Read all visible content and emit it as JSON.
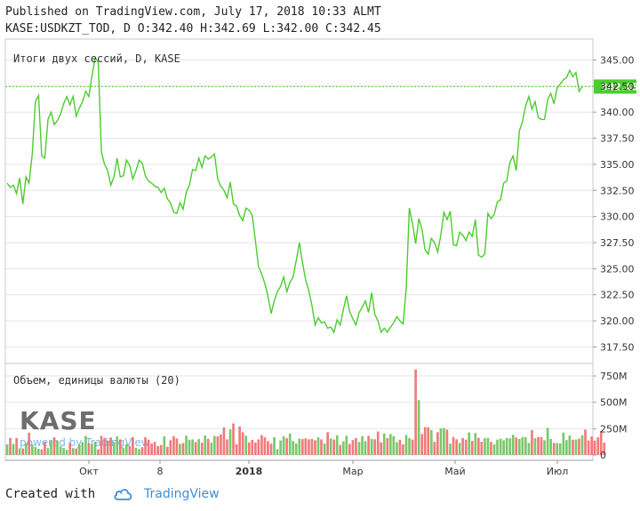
{
  "header": {
    "published": "Published on TradingView.com, July 17, 2018 10:33 ALMT",
    "ohlc": "KASE:USDKZT_TOD, D O:342.40 H:342.69 L:342.00 C:342.45"
  },
  "footer": {
    "created_with": "Created with",
    "brand": "TradingView"
  },
  "watermark": {
    "logo": "KASE",
    "powered": "powered by TradingView"
  },
  "colors": {
    "line": "#4bcd2e",
    "up": "#6cc25a",
    "down": "#ef6b6b",
    "last_tag": "#4bcd2e",
    "grid": "#e6e6e6"
  },
  "chart_data": [
    {
      "type": "line",
      "title": "Итоги двух сессий, D, KASE",
      "ylim": [
        316,
        347
      ],
      "yticks": [
        "317.50",
        "320.00",
        "322.50",
        "325.00",
        "327.50",
        "330.00",
        "332.50",
        "335.00",
        "337.50",
        "340.00",
        "342.50",
        "345.00"
      ],
      "last_value": "342.45",
      "xticks": [
        "Окт",
        "8",
        "2018",
        "Мар",
        "Май",
        "Июл"
      ],
      "series": [
        {
          "values": [
            333.2,
            332.8,
            333.0,
            332.2,
            333.7,
            331.2,
            333.8,
            333.2,
            336.0,
            341.0,
            341.6,
            335.8,
            335.6,
            339.3,
            340.0,
            338.8,
            339.2,
            339.8,
            340.8,
            341.5,
            340.7,
            341.5,
            339.6,
            340.4,
            341.0,
            342.0,
            341.5,
            343.5,
            345.2,
            344.8,
            336.2,
            335.0,
            334.4,
            333.0,
            333.8,
            335.6,
            333.8,
            333.9,
            335.4,
            334.9,
            333.6,
            334.4,
            335.4,
            335.1,
            333.9,
            333.4,
            333.2,
            332.9,
            332.8,
            332.3,
            332.7,
            331.7,
            331.3,
            330.4,
            330.3,
            331.3,
            330.7,
            332.3,
            333.0,
            334.5,
            334.4,
            335.6,
            334.7,
            335.8,
            335.5,
            335.7,
            336.0,
            333.6,
            332.9,
            332.5,
            331.8,
            333.3,
            331.2,
            331.0,
            330.1,
            329.6,
            330.8,
            330.6,
            330.1,
            327.7,
            325.2,
            324.5,
            323.6,
            322.4,
            320.7,
            321.9,
            322.8,
            323.3,
            324.2,
            322.8,
            323.7,
            324.2,
            325.8,
            327.5,
            325.6,
            323.9,
            322.9,
            321.5,
            319.6,
            320.3,
            319.8,
            319.9,
            319.3,
            319.4,
            318.9,
            320.1,
            319.6,
            321.1,
            322.4,
            320.9,
            320.2,
            319.6,
            320.8,
            321.3,
            321.9,
            320.8,
            322.7,
            320.6,
            320.0,
            318.9,
            319.3,
            318.9,
            319.4,
            319.8,
            320.4,
            320.0,
            319.7,
            323.1,
            330.8,
            329.3,
            327.4,
            329.8,
            328.8,
            326.8,
            326.4,
            327.9,
            327.5,
            326.6,
            328.2,
            330.4,
            329.7,
            330.5,
            327.3,
            327.2,
            328.5,
            328.2,
            327.7,
            328.5,
            328.1,
            329.7,
            326.3,
            326.1,
            326.4,
            330.3,
            329.8,
            330.2,
            331.4,
            331.6,
            333.2,
            333.4,
            335.2,
            335.8,
            334.4,
            338.2,
            339.1,
            340.6,
            341.5,
            340.3,
            341.0,
            339.5,
            339.3,
            339.3,
            341.2,
            341.8,
            340.8,
            342.3,
            342.7,
            343.1,
            343.3,
            344.0,
            343.4,
            343.8,
            342.0,
            342.45
          ]
        }
      ]
    },
    {
      "type": "bar",
      "title": "Объем, единицы валюты (20)",
      "ylim": [
        0,
        860
      ],
      "yticks": [
        "0",
        "250M",
        "500M",
        "750M"
      ],
      "series": [
        {
          "values": [
            100,
            162,
            105,
            161,
            63,
            62,
            112,
            212,
            101,
            77,
            59,
            52,
            126,
            67,
            137,
            169,
            138,
            82,
            67,
            48,
            117,
            66,
            61,
            98,
            123,
            181,
            111,
            104,
            127,
            53,
            181,
            161,
            136,
            166,
            125,
            176,
            148,
            67,
            104,
            86,
            170,
            69,
            56,
            74,
            169,
            145,
            109,
            125,
            84,
            95,
            177,
            78,
            141,
            179,
            157,
            106,
            114,
            184,
            145,
            148,
            123,
            150,
            116,
            185,
            153,
            117,
            181,
            178,
            196,
            261,
            148,
            242,
            299,
            101,
            271,
            216,
            183,
            119,
            143,
            119,
            148,
            189,
            168,
            132,
            108,
            169,
            55,
            139,
            179,
            159,
            203,
            132,
            109,
            156,
            151,
            158,
            148,
            153,
            140,
            168,
            148,
            109,
            217,
            157,
            147,
            186,
            95,
            130,
            182,
            104,
            142,
            160,
            124,
            179,
            131,
            182,
            153,
            149,
            223,
            121,
            205,
            160,
            198,
            180,
            122,
            144,
            100,
            189,
            161,
            146,
            812,
            521,
            199,
            264,
            263,
            237,
            125,
            217,
            252,
            256,
            240,
            107,
            170,
            149,
            115,
            161,
            146,
            214,
            133,
            208,
            162,
            126,
            159,
            163,
            124,
            101,
            147,
            156,
            141,
            162,
            158,
            192,
            166,
            153,
            170,
            169,
            115,
            236,
            159,
            171,
            169,
            141,
            256,
            153,
            115,
            114,
            110,
            213,
            142,
            185,
            145,
            146,
            154,
            186,
            242,
            138,
            176,
            137,
            168,
            228,
            117
          ]
        }
      ]
    }
  ]
}
